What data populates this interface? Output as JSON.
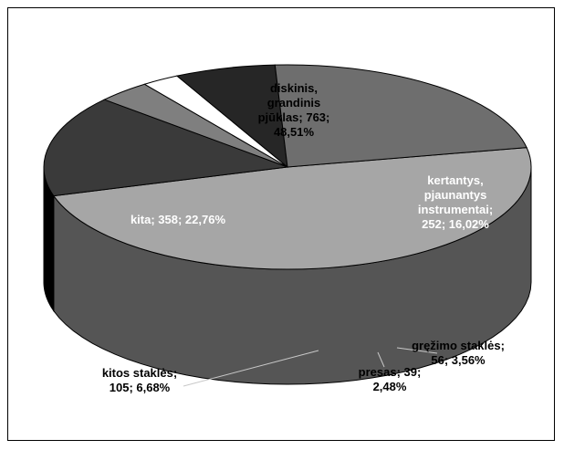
{
  "chart_data": {
    "type": "pie",
    "style": "3d",
    "slices": [
      {
        "label": "diskinis, grandinis pjūklas",
        "value": 763,
        "percent": 48.51,
        "color": "#a6a6a6",
        "text_lines": [
          "diskinis,",
          "grandinis",
          "pjūklas; 763;",
          "48,51%"
        ],
        "text_color": "#000000"
      },
      {
        "label": "kertantys, pjaunantys instrumentai",
        "value": 252,
        "percent": 16.02,
        "color": "#3a3a3a",
        "text_lines": [
          "kertantys,",
          "pjaunantys",
          "instrumentai;",
          "252; 16,02%"
        ],
        "text_color": "#ffffff"
      },
      {
        "label": "gręžimo staklės",
        "value": 56,
        "percent": 3.56,
        "color": "#7f7f7f",
        "text_lines": [
          "gręžimo  staklės;",
          "56; 3,56%"
        ],
        "text_color": "#000000"
      },
      {
        "label": "presas",
        "value": 39,
        "percent": 2.48,
        "color": "#ffffff",
        "text_lines": [
          "presas; 39;",
          "2,48%"
        ],
        "text_color": "#000000"
      },
      {
        "label": "kitos staklės",
        "value": 105,
        "percent": 6.68,
        "color": "#262626",
        "text_lines": [
          "kitos staklės;",
          "105; 6,68%"
        ],
        "text_color": "#000000"
      },
      {
        "label": "kita",
        "value": 358,
        "percent": 22.76,
        "color": "#6e6e6e",
        "text_lines": [
          "kita; 358; 22,76%"
        ],
        "text_color": "#ffffff"
      }
    ],
    "extra_side_band_color": "#c0c0c0",
    "legend": "none"
  }
}
